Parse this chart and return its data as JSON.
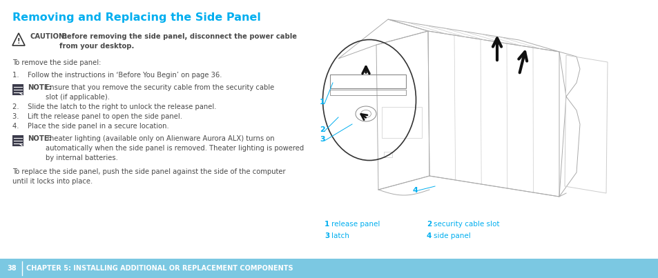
{
  "title": "Removing and Replacing the Side Panel",
  "title_color": "#00AEEF",
  "title_fontsize": 11.5,
  "bg_color": "#FFFFFF",
  "footer_bg_color": "#7BC8E2",
  "footer_color": "#FFFFFF",
  "footer_fontsize": 7.0,
  "caution_label": "CAUTION:",
  "caution_rest": " Before removing the side panel, disconnect the power cable\nfrom your desktop.",
  "body_text_intro": "To remove the side panel:",
  "step1": "1.    Follow the instructions in ‘Before You Begin’ on page 36.",
  "step2": "2.    Slide the latch to the right to unlock the release panel.",
  "step3": "3.    Lift the release panel to open the side panel.",
  "step4": "4.    Place the side panel in a secure location.",
  "note1_label": "NOTE:",
  "note1_rest": " Ensure that you remove the security cable from the security cable\nslot (if applicable).",
  "note2_label": "NOTE:",
  "note2_rest": " Theater lighting (available only on Alienware Aurora ALX) turns on\nautomatically when the side panel is removed. Theater lighting is powered\nby internal batteries.",
  "closing_text": "To replace the side panel, push the side panel against the side of the computer\nuntil it locks into place.",
  "legend_color": "#00AEEF",
  "text_color": "#4a4a4a",
  "body_fontsize": 7.2,
  "legend_fontsize": 7.5
}
